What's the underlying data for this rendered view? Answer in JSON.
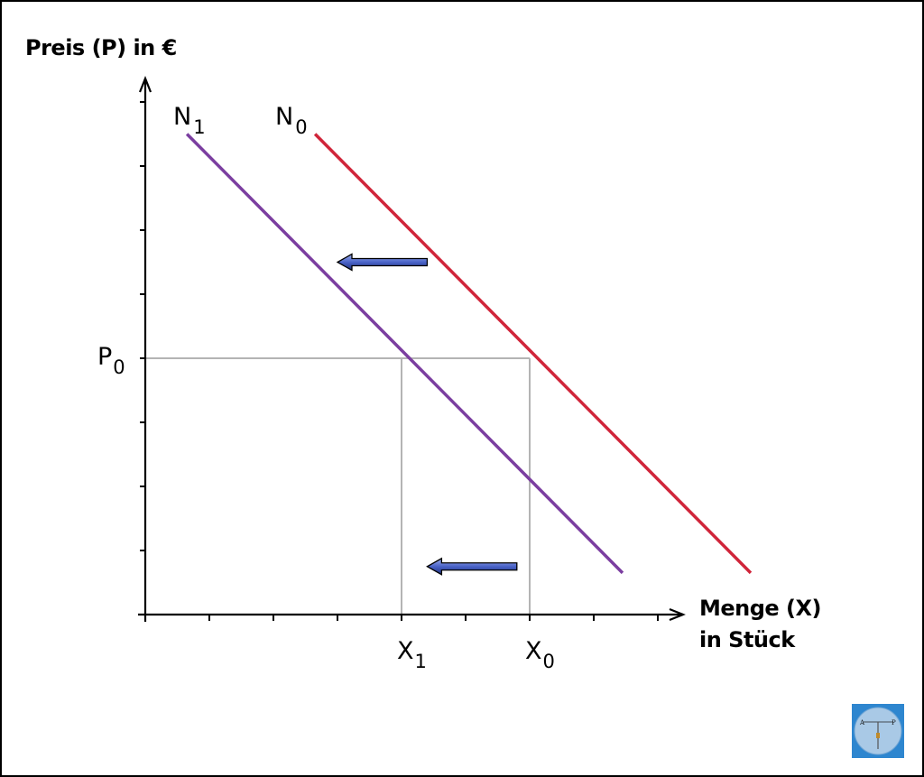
{
  "chart_data": {
    "type": "line",
    "title": "",
    "ylabel": "Preis (P) in €",
    "xlabel_line1": "Menge (X)",
    "xlabel_line2": "in Stück",
    "xlim": [
      0,
      8.2
    ],
    "ylim": [
      0,
      8.2
    ],
    "x_ticks": [
      1,
      2,
      3,
      4,
      5,
      6,
      7,
      8
    ],
    "y_ticks": [
      1,
      2,
      3,
      4,
      5,
      6,
      7,
      8
    ],
    "series": [
      {
        "name": "N0",
        "label_main": "N",
        "label_sub": "0",
        "color": "#d0253a",
        "x": [
          2.65,
          9.45
        ],
        "y": [
          7.5,
          0.65
        ]
      },
      {
        "name": "N1",
        "label_main": "N",
        "label_sub": "1",
        "color": "#7b3ea0",
        "x": [
          0.65,
          7.45
        ],
        "y": [
          7.5,
          0.65
        ]
      }
    ],
    "reference_lines": {
      "P0": {
        "label_main": "P",
        "label_sub": "0",
        "value": 4
      },
      "X0": {
        "label_main": "X",
        "label_sub": "0",
        "value": 6
      },
      "X1": {
        "label_main": "X",
        "label_sub": "1",
        "value": 4
      },
      "color": "#b4b4b4"
    },
    "shift_arrows": [
      {
        "direction": "left",
        "from": [
          4.4,
          5.5
        ],
        "to": [
          3.0,
          5.5
        ]
      },
      {
        "direction": "left",
        "from": [
          5.8,
          0.75
        ],
        "to": [
          4.4,
          0.75
        ]
      }
    ],
    "arrow_color": "#4a63c8",
    "grid": false,
    "legend": "none"
  },
  "logo": {
    "left_letter": "A",
    "right_letter": "P"
  }
}
